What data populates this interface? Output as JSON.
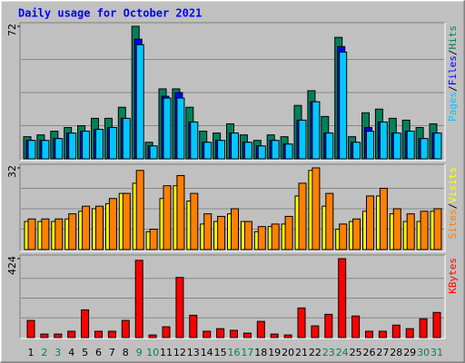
{
  "chart_data": [
    {
      "type": "bar",
      "title": "Daily usage for October 2021",
      "categories": [
        1,
        2,
        3,
        4,
        5,
        6,
        7,
        8,
        9,
        10,
        11,
        12,
        13,
        14,
        15,
        16,
        17,
        18,
        19,
        20,
        21,
        22,
        23,
        24,
        25,
        26,
        27,
        28,
        29,
        30,
        31
      ],
      "weekends": [
        2,
        3,
        9,
        10,
        16,
        17,
        23,
        24,
        30,
        31
      ],
      "weekend_color": "#00805c",
      "legend_separator": "/",
      "series": [
        {
          "name": "Hits",
          "color": "#00805c",
          "values": [
            12,
            13,
            15,
            17,
            18,
            22,
            22,
            28,
            72,
            9,
            38,
            38,
            28,
            15,
            14,
            19,
            13,
            10,
            13,
            12,
            29,
            37,
            23,
            66,
            12,
            25,
            27,
            22,
            21,
            17,
            19
          ]
        },
        {
          "name": "Files",
          "color": "#0000ff",
          "values": [
            10,
            10,
            11,
            14,
            15,
            16,
            17,
            22,
            65,
            7,
            34,
            36,
            20,
            9,
            10,
            14,
            9,
            7,
            10,
            8,
            21,
            31,
            14,
            61,
            9,
            17,
            20,
            14,
            15,
            11,
            14
          ]
        },
        {
          "name": "Pages",
          "color": "#00c8ff",
          "values": [
            10,
            10,
            11,
            14,
            15,
            16,
            17,
            22,
            62,
            7,
            33,
            33,
            20,
            9,
            10,
            14,
            9,
            7,
            10,
            8,
            21,
            31,
            14,
            58,
            9,
            15,
            20,
            14,
            15,
            11,
            14
          ]
        }
      ],
      "ylim": [
        0,
        72
      ],
      "yticks": [
        72
      ]
    },
    {
      "type": "bar",
      "legend_separator": "/",
      "series": [
        {
          "name": "Visits",
          "color": "#ffff00",
          "values": [
            11,
            11,
            11,
            12,
            15,
            16,
            18,
            22,
            26,
            7,
            20,
            25,
            19,
            10,
            11,
            14,
            11,
            7,
            9,
            10,
            21,
            31,
            17,
            8,
            11,
            15,
            21,
            14,
            11,
            11,
            15
          ]
        },
        {
          "name": "Sites",
          "color": "#ff8000",
          "values": [
            12,
            12,
            12,
            14,
            17,
            17,
            20,
            22,
            31,
            8,
            25,
            29,
            22,
            14,
            13,
            16,
            11,
            9,
            10,
            13,
            26,
            32,
            22,
            10,
            12,
            21,
            24,
            16,
            14,
            15,
            16
          ]
        }
      ],
      "ylim": [
        0,
        32
      ],
      "yticks": [
        32
      ]
    },
    {
      "type": "bar",
      "series": [
        {
          "name": "KBytes",
          "color": "#ff0000",
          "values": [
            92,
            19,
            19,
            34,
            149,
            34,
            34,
            92,
            415,
            14,
            58,
            323,
            120,
            34,
            48,
            39,
            24,
            87,
            19,
            14,
            159,
            63,
            125,
            424,
            116,
            34,
            34,
            67,
            48,
            101,
            135
          ]
        }
      ],
      "ylim": [
        0,
        424
      ],
      "yticks": [
        424
      ]
    }
  ]
}
